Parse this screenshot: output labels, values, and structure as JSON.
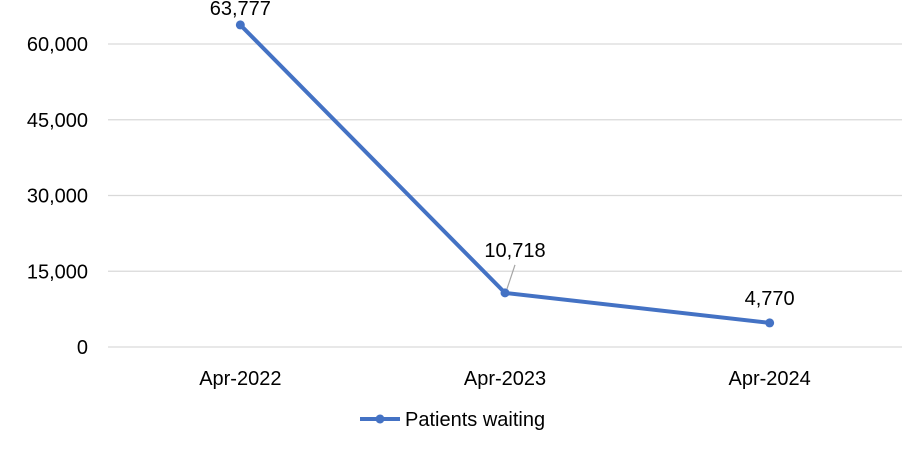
{
  "chart_data": {
    "type": "line",
    "categories": [
      "Apr-2022",
      "Apr-2023",
      "Apr-2024"
    ],
    "series": [
      {
        "name": "Patients waiting",
        "values": [
          63777,
          10718,
          4770
        ],
        "data_labels": [
          "63,777",
          "10,718",
          "4,770"
        ],
        "color": "#4472C4"
      }
    ],
    "y_ticks": [
      0,
      15000,
      30000,
      45000,
      60000
    ],
    "y_tick_labels": [
      "0",
      "15,000",
      "30,000",
      "45,000",
      "60,000"
    ],
    "ylim": [
      0,
      66000
    ],
    "grid": true,
    "gridline_color": "#d9d9d9",
    "legend_position": "bottom"
  }
}
